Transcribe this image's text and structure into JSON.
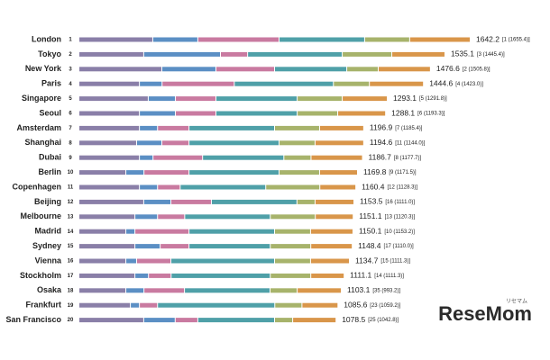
{
  "chart_data": {
    "type": "stacked-bar-horizontal",
    "categories": [
      "London",
      "Tokyo",
      "New York",
      "Paris",
      "Singapore",
      "Seoul",
      "Amsterdam",
      "Shanghai",
      "Dubai",
      "Berlin",
      "Copenhagen",
      "Beijing",
      "Melbourne",
      "Madrid",
      "Sydney",
      "Vienna",
      "Stockholm",
      "Osaka",
      "Frankfurt",
      "San Francisco"
    ],
    "ranks": [
      "1",
      "2",
      "3",
      "4",
      "5",
      "6",
      "7",
      "8",
      "9",
      "10",
      "11",
      "12",
      "13",
      "14",
      "15",
      "16",
      "17",
      "18",
      "19",
      "20"
    ],
    "totals": [
      1642.2,
      1535.1,
      1476.6,
      1444.6,
      1293.1,
      1288.1,
      1196.9,
      1194.6,
      1186.7,
      1169.8,
      1160.4,
      1153.5,
      1151.1,
      1150.1,
      1148.4,
      1134.7,
      1111.1,
      1103.1,
      1085.6,
      1078.5
    ],
    "previous": [
      "[1 (1655.4)]",
      "[3 (1445.4)]",
      "[2 (1505.8)]",
      "[4 (1423.0)]",
      "[5 (1291.8)]",
      "[6 (1193.3)]",
      "[7 (1185.4)]",
      "[11 (1144.0)]",
      "[8 (1177.7)]",
      "[9 (1171.5)]",
      "[12 (1128.3)]",
      "[16 (1111.0)]",
      "[13 (1120.3)]",
      "[10 (1153.2)]",
      "[17 (1110.0)]",
      "[15 (1111.3)]",
      "[14 (1111.3)]",
      "[35 (993.2)]",
      "[23 (1059.2)]",
      "[25 (1042.8)]"
    ],
    "series": [
      {
        "color": "#8a7fa8",
        "values": [
          310,
          272,
          348,
          254,
          291,
          254,
          254,
          242,
          254,
          197,
          254,
          272,
          235,
          197,
          235,
          197,
          235,
          197,
          216,
          272
        ]
      },
      {
        "color": "#5b8fc4",
        "values": [
          189,
          322,
          227,
          95,
          114,
          151,
          76,
          106,
          57,
          76,
          76,
          114,
          95,
          38,
          106,
          45,
          57,
          76,
          38,
          132
        ]
      },
      {
        "color": "#c97aa0",
        "values": [
          341,
          114,
          246,
          303,
          170,
          170,
          132,
          114,
          208,
          189,
          95,
          170,
          114,
          227,
          121,
          144,
          95,
          170,
          76,
          95
        ]
      },
      {
        "color": "#4fa0a8",
        "values": [
          359,
          397,
          303,
          416,
          341,
          341,
          359,
          378,
          341,
          378,
          359,
          359,
          359,
          359,
          341,
          435,
          416,
          359,
          492,
          322
        ]
      },
      {
        "color": "#a7b36b",
        "values": [
          189,
          208,
          132,
          151,
          189,
          170,
          189,
          151,
          114,
          170,
          227,
          76,
          189,
          151,
          170,
          151,
          170,
          114,
          114,
          76
        ]
      },
      {
        "color": "#d9964a",
        "values": [
          254,
          223,
          219,
          227,
          189,
          201,
          185,
          204,
          216,
          159,
          151,
          163,
          159,
          178,
          174,
          163,
          140,
          185,
          151,
          182
        ]
      }
    ]
  },
  "watermark": "ReseMom",
  "watermark_sub": "リセマム"
}
